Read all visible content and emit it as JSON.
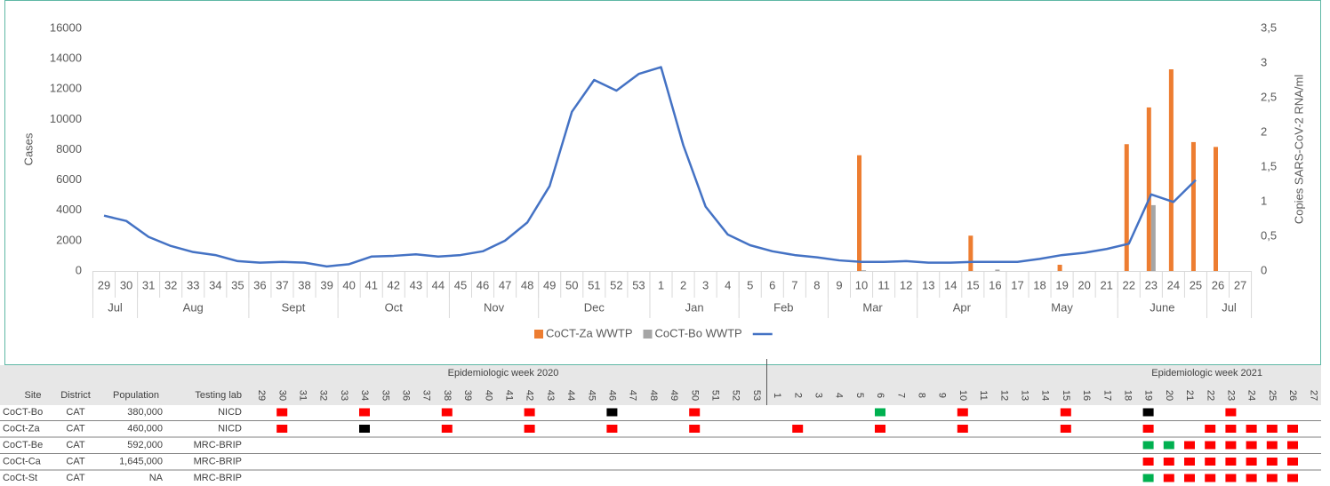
{
  "chart_data": {
    "type": "combo",
    "y_label": "Cases",
    "y2_label": "Copies SARS-CoV-2 RNA/ml",
    "categories": [
      "29",
      "30",
      "31",
      "32",
      "33",
      "34",
      "35",
      "36",
      "37",
      "38",
      "39",
      "40",
      "41",
      "42",
      "43",
      "44",
      "45",
      "46",
      "47",
      "48",
      "49",
      "50",
      "51",
      "52",
      "53",
      "1",
      "2",
      "3",
      "4",
      "5",
      "6",
      "7",
      "8",
      "9",
      "10",
      "11",
      "12",
      "13",
      "14",
      "15",
      "16",
      "17",
      "18",
      "19",
      "20",
      "21",
      "22",
      "23",
      "24",
      "25",
      "26",
      "27"
    ],
    "months": [
      "Jul",
      null,
      "Aug",
      null,
      null,
      null,
      null,
      "Sept",
      null,
      null,
      null,
      "Oct",
      null,
      null,
      null,
      null,
      "Nov",
      null,
      null,
      null,
      "Dec",
      null,
      null,
      null,
      null,
      "Jan",
      null,
      null,
      null,
      "Feb",
      null,
      null,
      null,
      "Mar",
      null,
      null,
      null,
      "Apr",
      null,
      null,
      null,
      "May",
      null,
      null,
      null,
      null,
      "June",
      null,
      null,
      null,
      "Jul",
      null
    ],
    "ylim": [
      0,
      16000
    ],
    "yticks": [
      0,
      2000,
      4000,
      6000,
      8000,
      10000,
      12000,
      14000,
      16000
    ],
    "y2lim": [
      0,
      3.5
    ],
    "y2ticks": [
      0,
      {
        "value": 0.5,
        "label": "0,5"
      },
      1,
      {
        "value": 1.5,
        "label": "1,5"
      },
      2,
      {
        "value": 2.5,
        "label": "2,5"
      },
      3,
      {
        "value": 3.5,
        "label": "3,5"
      }
    ],
    "grid": false,
    "series": [
      {
        "name": "CoCT-Za WWTP",
        "type": "bar",
        "axis": "y2",
        "color": "#ed7d31",
        "values": [
          null,
          null,
          null,
          null,
          null,
          null,
          null,
          null,
          null,
          null,
          null,
          null,
          null,
          null,
          null,
          null,
          null,
          null,
          null,
          null,
          null,
          null,
          null,
          null,
          null,
          null,
          null,
          null,
          null,
          null,
          null,
          null,
          null,
          null,
          1.67,
          null,
          null,
          null,
          null,
          0.51,
          null,
          null,
          null,
          0.09,
          null,
          null,
          1.83,
          2.36,
          2.91,
          1.86,
          1.79,
          null
        ]
      },
      {
        "name": "CoCT-Bo WWTP",
        "type": "bar",
        "axis": "y2",
        "color": "#a5a5a5",
        "values": [
          null,
          null,
          null,
          null,
          null,
          null,
          null,
          null,
          null,
          null,
          null,
          null,
          null,
          null,
          null,
          null,
          null,
          null,
          null,
          null,
          null,
          null,
          null,
          null,
          null,
          null,
          null,
          null,
          null,
          null,
          null,
          null,
          null,
          null,
          0.01,
          null,
          null,
          null,
          null,
          null,
          0.02,
          null,
          null,
          null,
          null,
          null,
          null,
          0.95,
          null,
          null,
          null,
          null
        ]
      },
      {
        "type": "line",
        "color": "#4472c4",
        "values": [
          3650,
          3300,
          2250,
          1650,
          1250,
          1050,
          650,
          550,
          600,
          550,
          300,
          450,
          950,
          1000,
          1100,
          950,
          1050,
          1300,
          2000,
          3200,
          5600,
          10500,
          12600,
          11900,
          13000,
          13450,
          8300,
          4250,
          2400,
          1700,
          1300,
          1050,
          900,
          700,
          600,
          600,
          650,
          550,
          550,
          600,
          600,
          600,
          800,
          1050,
          1200,
          1450,
          1800,
          5050,
          4550,
          6000,
          null,
          null
        ]
      }
    ]
  },
  "table": {
    "year_headers": [
      "Epidemiologic week 2020",
      "Epidemiologic week 2021"
    ],
    "columns": [
      "Site",
      "District",
      "Population",
      "Testing lab"
    ],
    "weeks": [
      "29",
      "30",
      "31",
      "32",
      "33",
      "34",
      "35",
      "36",
      "37",
      "38",
      "39",
      "40",
      "41",
      "42",
      "43",
      "44",
      "45",
      "46",
      "47",
      "48",
      "49",
      "50",
      "51",
      "52",
      "53",
      "1",
      "2",
      "3",
      "4",
      "5",
      "6",
      "7",
      "8",
      "9",
      "10",
      "11",
      "12",
      "13",
      "14",
      "15",
      "16",
      "17",
      "18",
      "19",
      "20",
      "21",
      "22",
      "23",
      "24",
      "25",
      "26",
      "27"
    ],
    "rows": [
      {
        "site": "CoCT-Bo",
        "district": "CAT",
        "population": "380,000",
        "lab": "NICD",
        "cells": [
          null,
          "#ff0000",
          null,
          null,
          null,
          "#ff0000",
          null,
          null,
          null,
          "#ff0000",
          null,
          null,
          null,
          "#ff0000",
          null,
          null,
          null,
          "#000000",
          null,
          null,
          null,
          "#ff0000",
          null,
          null,
          null,
          null,
          null,
          null,
          null,
          null,
          "#00b050",
          null,
          null,
          null,
          "#ff0000",
          null,
          null,
          null,
          null,
          "#ff0000",
          null,
          null,
          null,
          "#000000",
          null,
          null,
          null,
          "#ff0000",
          null,
          null,
          null,
          null
        ]
      },
      {
        "site": "CoCt-Za",
        "district": "CAT",
        "population": "460,000",
        "lab": "NICD",
        "cells": [
          null,
          "#ff0000",
          null,
          null,
          null,
          "#000000",
          null,
          null,
          null,
          "#ff0000",
          null,
          null,
          null,
          "#ff0000",
          null,
          null,
          null,
          "#ff0000",
          null,
          null,
          null,
          "#ff0000",
          null,
          null,
          null,
          null,
          "#ff0000",
          null,
          null,
          null,
          "#ff0000",
          null,
          null,
          null,
          "#ff0000",
          null,
          null,
          null,
          null,
          "#ff0000",
          null,
          null,
          null,
          "#ff0000",
          null,
          null,
          "#ff0000",
          "#ff0000",
          "#ff0000",
          "#ff0000",
          "#ff0000",
          null
        ]
      },
      {
        "site": "CoCT-Be",
        "district": "CAT",
        "population": "592,000",
        "lab": "MRC-BRIP",
        "cells": [
          null,
          null,
          null,
          null,
          null,
          null,
          null,
          null,
          null,
          null,
          null,
          null,
          null,
          null,
          null,
          null,
          null,
          null,
          null,
          null,
          null,
          null,
          null,
          null,
          null,
          null,
          null,
          null,
          null,
          null,
          null,
          null,
          null,
          null,
          null,
          null,
          null,
          null,
          null,
          null,
          null,
          null,
          null,
          "#00b050",
          "#00b050",
          "#ff0000",
          "#ff0000",
          "#ff0000",
          "#ff0000",
          "#ff0000",
          "#ff0000",
          null
        ]
      },
      {
        "site": "CoCt-Ca",
        "district": "CAT",
        "population": "1,645,000",
        "lab": "MRC-BRIP",
        "cells": [
          null,
          null,
          null,
          null,
          null,
          null,
          null,
          null,
          null,
          null,
          null,
          null,
          null,
          null,
          null,
          null,
          null,
          null,
          null,
          null,
          null,
          null,
          null,
          null,
          null,
          null,
          null,
          null,
          null,
          null,
          null,
          null,
          null,
          null,
          null,
          null,
          null,
          null,
          null,
          null,
          null,
          null,
          null,
          "#ff0000",
          "#ff0000",
          "#ff0000",
          "#ff0000",
          "#ff0000",
          "#ff0000",
          "#ff0000",
          "#ff0000",
          null
        ]
      },
      {
        "site": "CoCt-St",
        "district": "CAT",
        "population": "NA",
        "lab": "MRC-BRIP",
        "cells": [
          null,
          null,
          null,
          null,
          null,
          null,
          null,
          null,
          null,
          null,
          null,
          null,
          null,
          null,
          null,
          null,
          null,
          null,
          null,
          null,
          null,
          null,
          null,
          null,
          null,
          null,
          null,
          null,
          null,
          null,
          null,
          null,
          null,
          null,
          null,
          null,
          null,
          null,
          null,
          null,
          null,
          null,
          null,
          "#00b050",
          "#ff0000",
          "#ff0000",
          "#ff0000",
          "#ff0000",
          "#ff0000",
          "#ff0000",
          "#ff0000",
          null
        ]
      }
    ]
  }
}
